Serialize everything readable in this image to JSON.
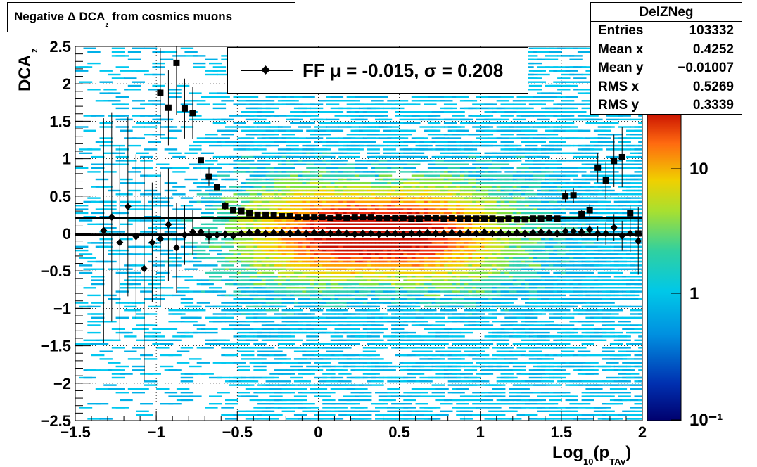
{
  "title": {
    "main": "Negative Δ DCA",
    "sub": "z",
    "tail": " from cosmics muons"
  },
  "stats": {
    "name": "DelZNeg",
    "rows": [
      {
        "label": "Entries",
        "value": "103332"
      },
      {
        "label": "Mean x",
        "value": "0.4252"
      },
      {
        "label": "Mean y",
        "value": "−0.01007"
      },
      {
        "label": "RMS x",
        "value": "0.5269"
      },
      {
        "label": "RMS y",
        "value": "0.3339"
      }
    ]
  },
  "legend": {
    "text": "FF μ = -0.015, σ =   0.208"
  },
  "axes": {
    "ylabel_main": "DCA",
    "ylabel_sub": "z",
    "xlabel_main": "Log",
    "xlabel_sub1": "10",
    "xlabel_mid": "(p",
    "xlabel_sub2": "TAv",
    "xlabel_end": ")"
  },
  "colors": {
    "accent": "#000000",
    "palette": [
      "#00006e",
      "#0050d0",
      "#00b8e8",
      "#30d0a0",
      "#c8e020",
      "#f0d000",
      "#ff6a10",
      "#c81000"
    ]
  },
  "chart_data": {
    "type": "scatter",
    "xlim": [
      -1.5,
      2.0
    ],
    "ylim": [
      -2.5,
      2.5
    ],
    "x_ticks": [
      -1.5,
      -1.0,
      -0.5,
      0,
      0.5,
      1.0,
      1.5,
      2.0
    ],
    "x_tick_labels": [
      "−1.5",
      "−1",
      "−0.5",
      "0",
      "0.5",
      "1",
      "1.5",
      "2"
    ],
    "y_ticks": [
      -2.5,
      -2.0,
      -1.5,
      -1.0,
      -0.5,
      0,
      0.5,
      1.0,
      1.5,
      2.0,
      2.5
    ],
    "y_tick_labels": [
      "−2.5",
      "−2",
      "−1.5",
      "−1",
      "−0.5",
      "0",
      "0.5",
      "1",
      "1.5",
      "2",
      "2.5"
    ],
    "z_scale": "log",
    "z_ticks": [
      "10",
      "1",
      "10⁻¹"
    ],
    "grid": true,
    "fit_lines": [
      -0.015,
      0.208
    ],
    "series": [
      {
        "marker": "diamond",
        "x": [
          -1.325,
          -1.275,
          -1.225,
          -1.175,
          -1.125,
          -1.075,
          -1.025,
          -0.975,
          -0.925,
          -0.875,
          -0.825,
          -0.775,
          -0.725,
          -0.675,
          -0.625,
          -0.575,
          -0.525,
          -0.475,
          -0.425,
          -0.375,
          -0.325,
          -0.275,
          -0.225,
          -0.175,
          -0.125,
          -0.075,
          -0.025,
          0.025,
          0.075,
          0.125,
          0.175,
          0.225,
          0.275,
          0.325,
          0.375,
          0.425,
          0.475,
          0.525,
          0.575,
          0.625,
          0.675,
          0.725,
          0.775,
          0.825,
          0.875,
          0.925,
          0.975,
          1.025,
          1.075,
          1.125,
          1.175,
          1.225,
          1.275,
          1.325,
          1.375,
          1.425,
          1.475,
          1.525,
          1.575,
          1.625,
          1.675,
          1.725,
          1.775,
          1.825,
          1.875,
          1.925,
          1.975
        ],
        "y": [
          0.04,
          0.22,
          -0.12,
          0.36,
          -0.04,
          -0.47,
          -0.12,
          -0.07,
          0.12,
          -0.19,
          -0.02,
          0.02,
          0.02,
          -0.04,
          -0.02,
          -0.01,
          -0.03,
          0.0,
          0.01,
          0.02,
          0.0,
          0.01,
          0.01,
          0.0,
          0.01,
          0.0,
          0.01,
          0.01,
          0.0,
          0.01,
          0.0,
          -0.01,
          0.0,
          0.0,
          -0.01,
          0.0,
          0.0,
          -0.01,
          0.0,
          0.0,
          0.01,
          0.0,
          0.0,
          0.01,
          0.0,
          0.01,
          0.0,
          0.02,
          0.0,
          0.01,
          0.0,
          0.01,
          0.0,
          0.01,
          0.02,
          0.01,
          0.0,
          0.03,
          0.03,
          0.02,
          0.05,
          0.0,
          0.0,
          0.08,
          -0.03,
          0.0,
          -0.1
        ],
        "err": [
          1.5,
          1.4,
          1.3,
          1.2,
          1.1,
          1.5,
          0.8,
          0.9,
          0.75,
          0.6,
          0.4,
          0.3,
          0.2,
          0.1,
          0.07,
          0.05,
          0.03,
          0.03,
          0.02,
          0.02,
          0.02,
          0.02,
          0.02,
          0.02,
          0.02,
          0.02,
          0.02,
          0.02,
          0.02,
          0.02,
          0.02,
          0.02,
          0.02,
          0.02,
          0.02,
          0.02,
          0.02,
          0.02,
          0.02,
          0.02,
          0.02,
          0.02,
          0.02,
          0.02,
          0.02,
          0.02,
          0.02,
          0.02,
          0.02,
          0.02,
          0.02,
          0.02,
          0.02,
          0.02,
          0.03,
          0.03,
          0.03,
          0.04,
          0.05,
          0.06,
          0.07,
          0.1,
          0.15,
          0.18,
          0.2,
          0.25,
          0.45
        ]
      },
      {
        "marker": "square",
        "x": [
          -0.975,
          -0.925,
          -0.875,
          -0.825,
          -0.775,
          -0.725,
          -0.675,
          -0.625,
          -0.575,
          -0.525,
          -0.475,
          -0.425,
          -0.375,
          -0.325,
          -0.275,
          -0.225,
          -0.175,
          -0.125,
          -0.075,
          -0.025,
          0.025,
          0.075,
          0.125,
          0.175,
          0.225,
          0.275,
          0.325,
          0.375,
          0.425,
          0.475,
          0.525,
          0.575,
          0.625,
          0.675,
          0.725,
          0.775,
          0.825,
          0.875,
          0.925,
          0.975,
          1.025,
          1.075,
          1.125,
          1.175,
          1.225,
          1.275,
          1.325,
          1.375,
          1.425,
          1.475,
          1.525,
          1.575,
          1.625,
          1.675,
          1.725,
          1.775,
          1.825,
          1.875,
          1.925,
          1.975
        ],
        "y": [
          1.88,
          1.68,
          2.28,
          1.67,
          1.61,
          0.98,
          0.76,
          0.62,
          0.37,
          0.31,
          0.3,
          0.27,
          0.25,
          0.25,
          0.24,
          0.23,
          0.23,
          0.22,
          0.22,
          0.22,
          0.22,
          0.21,
          0.22,
          0.21,
          0.22,
          0.22,
          0.22,
          0.21,
          0.21,
          0.21,
          0.21,
          0.2,
          0.2,
          0.21,
          0.21,
          0.2,
          0.21,
          0.2,
          0.2,
          0.2,
          0.2,
          0.2,
          0.19,
          0.2,
          0.19,
          0.19,
          0.2,
          0.2,
          0.21,
          0.2,
          0.5,
          0.51,
          0.26,
          0.31,
          0.88,
          0.71,
          0.97,
          1.02,
          0.27,
          0.0
        ],
        "err": [
          0.6,
          0.5,
          0.7,
          0.4,
          0.35,
          0.2,
          0.12,
          0.08,
          0.05,
          0.03,
          0.03,
          0.02,
          0.02,
          0.02,
          0.02,
          0.02,
          0.02,
          0.02,
          0.02,
          0.02,
          0.02,
          0.02,
          0.02,
          0.02,
          0.02,
          0.02,
          0.02,
          0.02,
          0.02,
          0.02,
          0.02,
          0.02,
          0.02,
          0.02,
          0.02,
          0.02,
          0.02,
          0.02,
          0.02,
          0.02,
          0.02,
          0.02,
          0.02,
          0.02,
          0.02,
          0.02,
          0.02,
          0.02,
          0.03,
          0.03,
          0.08,
          0.1,
          0.06,
          0.08,
          0.2,
          0.25,
          0.35,
          0.4,
          0.1,
          0.1
        ]
      }
    ]
  }
}
